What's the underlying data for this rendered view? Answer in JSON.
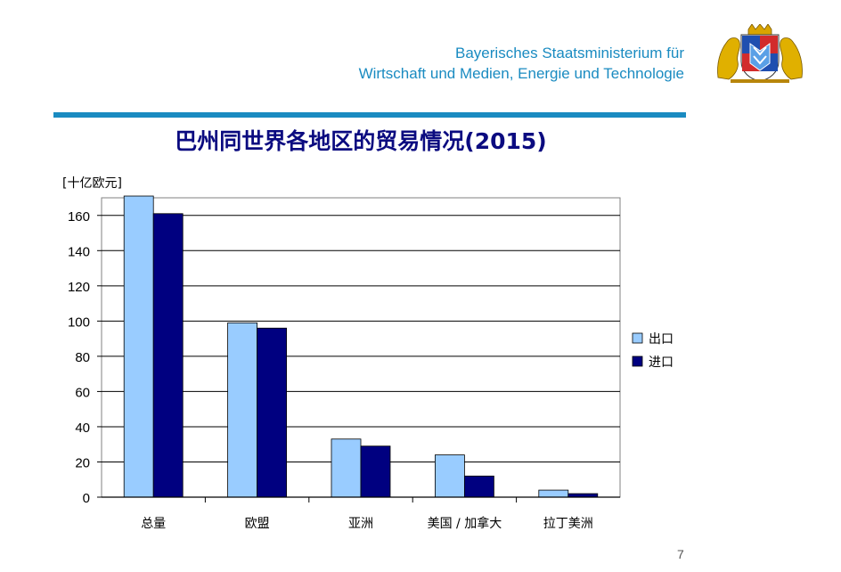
{
  "header": {
    "ministry_line1": "Bayerisches Staatsministerium für",
    "ministry_line2": "Wirtschaft und Medien, Energie und Technologie"
  },
  "chart_data": {
    "type": "bar",
    "title": "巴州同世界各地区的贸易情况(2015)",
    "ylabel": "[十亿欧元]",
    "categories": [
      "总量",
      "欧盟",
      "亚洲",
      "美国 / 加拿大",
      "拉丁美洲"
    ],
    "series": [
      {
        "name": "出口",
        "values": [
          171,
          99,
          33,
          24,
          4
        ],
        "color": "#99ccff"
      },
      {
        "name": "进口",
        "values": [
          161,
          96,
          29,
          12,
          2
        ],
        "color": "#000080"
      }
    ],
    "ylim": [
      0,
      170
    ],
    "yticks": [
      0,
      20,
      40,
      60,
      80,
      100,
      120,
      140,
      160
    ],
    "grid": true,
    "legend": "right"
  },
  "page_number": "7"
}
